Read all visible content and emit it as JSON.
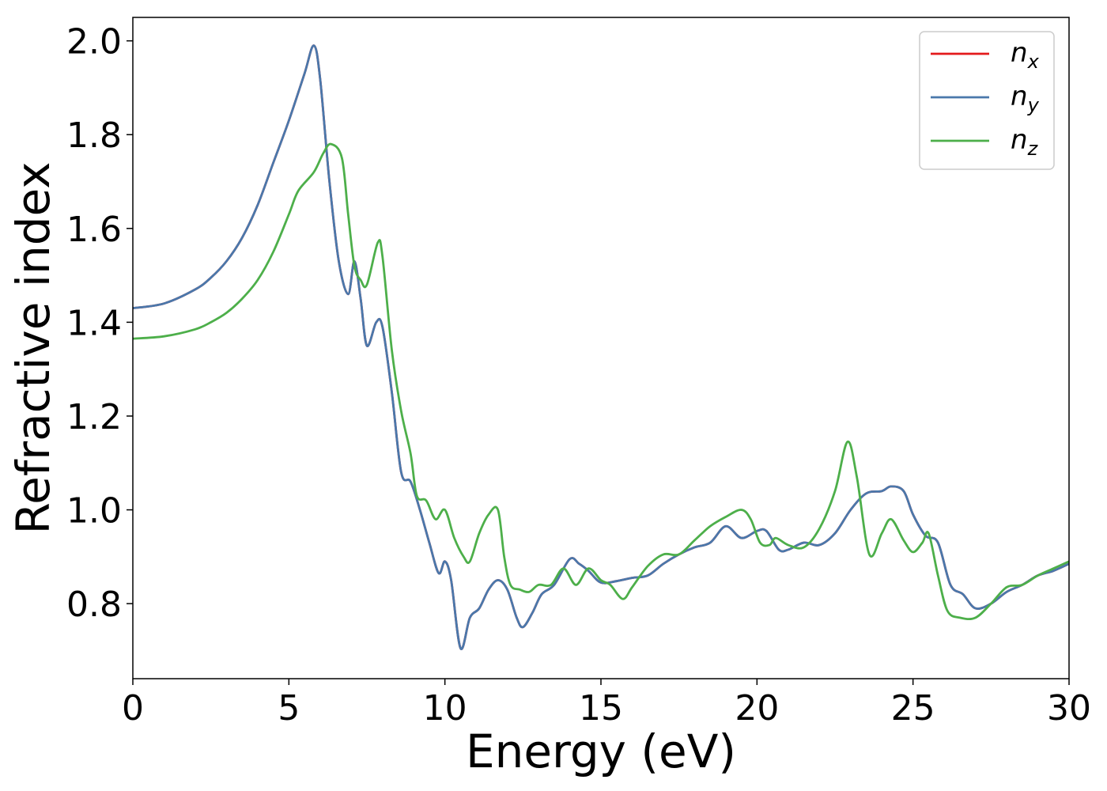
{
  "chart_data": {
    "type": "line",
    "title": "",
    "xlabel": "Energy (eV)",
    "ylabel": "Refractive index",
    "xlim": [
      0,
      30
    ],
    "ylim": [
      0.64,
      2.05
    ],
    "xticks": [
      0,
      5,
      10,
      15,
      20,
      25,
      30
    ],
    "yticks": [
      0.8,
      1.0,
      1.2,
      1.4,
      1.6,
      1.8,
      2.0
    ],
    "xtick_labels": [
      "0",
      "5",
      "10",
      "15",
      "20",
      "25",
      "30"
    ],
    "ytick_labels": [
      "0.8",
      "1.0",
      "1.2",
      "1.4",
      "1.6",
      "1.8",
      "2.0"
    ],
    "grid": false,
    "legend": {
      "position": "top-right"
    },
    "series": [
      {
        "name": "n",
        "subscript": "x",
        "color": "#e41a1c",
        "drawn_under": "n_y",
        "x": [
          0,
          1,
          2,
          2.5,
          3,
          3.5,
          4,
          4.5,
          5,
          5.5,
          5.8,
          6.0,
          6.3,
          6.6,
          6.9,
          7.1,
          7.3,
          7.5,
          7.8,
          8.0,
          8.3,
          8.6,
          8.9,
          9.2,
          9.5,
          9.8,
          10.0,
          10.2,
          10.5,
          10.8,
          11.1,
          11.4,
          11.7,
          12.0,
          12.3,
          12.5,
          12.8,
          13.1,
          13.5,
          14.0,
          14.3,
          14.6,
          15.0,
          15.5,
          16.0,
          16.5,
          17.0,
          17.5,
          18.0,
          18.5,
          19.0,
          19.5,
          20.0,
          20.3,
          20.7,
          21.0,
          21.5,
          22.0,
          22.5,
          23.0,
          23.5,
          24.0,
          24.3,
          24.7,
          25.0,
          25.4,
          25.8,
          26.2,
          26.6,
          27.0,
          27.5,
          28.0,
          28.5,
          29.0,
          29.5,
          30.0
        ],
        "y": [
          1.43,
          1.44,
          1.47,
          1.495,
          1.53,
          1.58,
          1.65,
          1.74,
          1.83,
          1.93,
          1.99,
          1.92,
          1.7,
          1.53,
          1.46,
          1.53,
          1.45,
          1.35,
          1.4,
          1.39,
          1.25,
          1.08,
          1.06,
          1.0,
          0.93,
          0.865,
          0.89,
          0.85,
          0.705,
          0.77,
          0.79,
          0.83,
          0.85,
          0.83,
          0.77,
          0.75,
          0.78,
          0.82,
          0.84,
          0.895,
          0.885,
          0.87,
          0.845,
          0.848,
          0.855,
          0.86,
          0.885,
          0.905,
          0.92,
          0.93,
          0.965,
          0.94,
          0.955,
          0.955,
          0.915,
          0.915,
          0.93,
          0.925,
          0.95,
          1.0,
          1.035,
          1.04,
          1.05,
          1.04,
          0.99,
          0.945,
          0.93,
          0.84,
          0.82,
          0.79,
          0.8,
          0.825,
          0.84,
          0.86,
          0.87,
          0.885
        ]
      },
      {
        "name": "n",
        "subscript": "y",
        "color": "#4a78ab",
        "x": [
          0,
          1,
          2,
          2.5,
          3,
          3.5,
          4,
          4.5,
          5,
          5.5,
          5.8,
          6.0,
          6.3,
          6.6,
          6.9,
          7.1,
          7.3,
          7.5,
          7.8,
          8.0,
          8.3,
          8.6,
          8.9,
          9.2,
          9.5,
          9.8,
          10.0,
          10.2,
          10.5,
          10.8,
          11.1,
          11.4,
          11.7,
          12.0,
          12.3,
          12.5,
          12.8,
          13.1,
          13.5,
          14.0,
          14.3,
          14.6,
          15.0,
          15.5,
          16.0,
          16.5,
          17.0,
          17.5,
          18.0,
          18.5,
          19.0,
          19.5,
          20.0,
          20.3,
          20.7,
          21.0,
          21.5,
          22.0,
          22.5,
          23.0,
          23.5,
          24.0,
          24.3,
          24.7,
          25.0,
          25.4,
          25.8,
          26.2,
          26.6,
          27.0,
          27.5,
          28.0,
          28.5,
          29.0,
          29.5,
          30.0
        ],
        "y": [
          1.43,
          1.44,
          1.47,
          1.495,
          1.53,
          1.58,
          1.65,
          1.74,
          1.83,
          1.93,
          1.99,
          1.92,
          1.7,
          1.53,
          1.46,
          1.53,
          1.45,
          1.35,
          1.4,
          1.39,
          1.25,
          1.08,
          1.06,
          1.0,
          0.93,
          0.865,
          0.89,
          0.85,
          0.705,
          0.77,
          0.79,
          0.83,
          0.85,
          0.83,
          0.77,
          0.75,
          0.78,
          0.82,
          0.84,
          0.895,
          0.885,
          0.87,
          0.845,
          0.848,
          0.855,
          0.86,
          0.885,
          0.905,
          0.92,
          0.93,
          0.965,
          0.94,
          0.955,
          0.955,
          0.915,
          0.915,
          0.93,
          0.925,
          0.95,
          1.0,
          1.035,
          1.04,
          1.05,
          1.04,
          0.99,
          0.945,
          0.93,
          0.84,
          0.82,
          0.79,
          0.8,
          0.825,
          0.84,
          0.86,
          0.87,
          0.885
        ]
      },
      {
        "name": "n",
        "subscript": "z",
        "color": "#4daf4a",
        "x": [
          0,
          1,
          2,
          2.5,
          3,
          3.5,
          4,
          4.5,
          5,
          5.3,
          5.8,
          6.1,
          6.35,
          6.7,
          6.9,
          7.1,
          7.3,
          7.5,
          7.85,
          8.0,
          8.3,
          8.6,
          8.9,
          9.1,
          9.4,
          9.7,
          10.0,
          10.3,
          10.6,
          10.8,
          11.1,
          11.4,
          11.7,
          11.9,
          12.1,
          12.4,
          12.7,
          13.0,
          13.4,
          13.8,
          14.2,
          14.6,
          15.0,
          15.3,
          15.7,
          16.0,
          16.5,
          17.0,
          17.5,
          18.0,
          18.5,
          19.0,
          19.5,
          19.8,
          20.1,
          20.4,
          20.6,
          21.0,
          21.5,
          22.0,
          22.5,
          22.9,
          23.2,
          23.6,
          24.0,
          24.3,
          24.7,
          25.0,
          25.3,
          25.5,
          25.8,
          26.1,
          26.5,
          27.0,
          27.5,
          28.0,
          28.5,
          29.0,
          29.5,
          30.0
        ],
        "y": [
          1.365,
          1.37,
          1.385,
          1.4,
          1.42,
          1.45,
          1.49,
          1.55,
          1.63,
          1.68,
          1.72,
          1.76,
          1.78,
          1.75,
          1.63,
          1.52,
          1.49,
          1.48,
          1.57,
          1.54,
          1.34,
          1.21,
          1.12,
          1.03,
          1.02,
          0.98,
          1.0,
          0.94,
          0.9,
          0.89,
          0.95,
          0.99,
          1.0,
          0.9,
          0.84,
          0.83,
          0.825,
          0.84,
          0.84,
          0.875,
          0.84,
          0.875,
          0.85,
          0.84,
          0.81,
          0.835,
          0.88,
          0.905,
          0.905,
          0.935,
          0.965,
          0.985,
          1.0,
          0.98,
          0.93,
          0.925,
          0.94,
          0.925,
          0.92,
          0.96,
          1.04,
          1.145,
          1.07,
          0.905,
          0.95,
          0.98,
          0.935,
          0.91,
          0.93,
          0.95,
          0.86,
          0.785,
          0.77,
          0.77,
          0.8,
          0.835,
          0.84,
          0.86,
          0.875,
          0.89
        ]
      }
    ]
  }
}
